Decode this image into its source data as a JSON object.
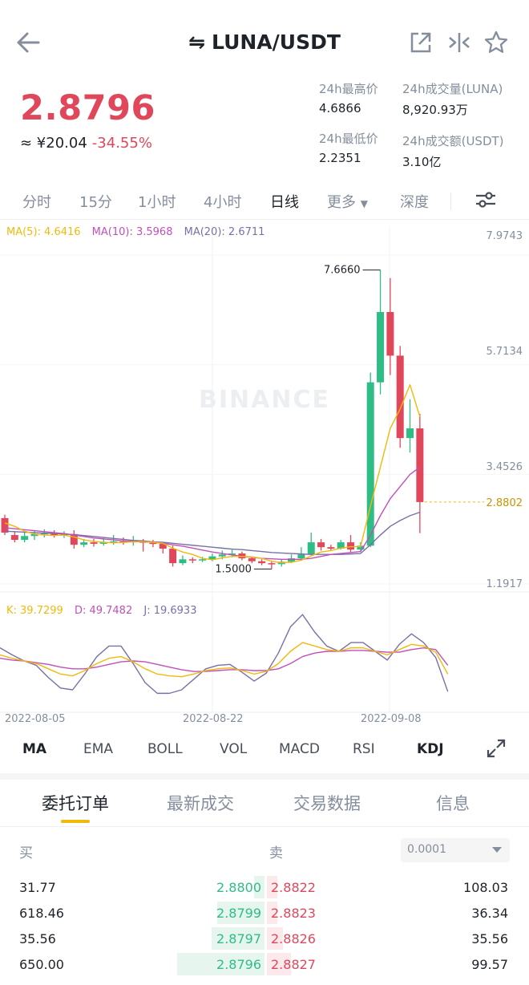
{
  "header": {
    "pair": "LUNA/USDT",
    "swap_glyph": "⇋"
  },
  "ticker": {
    "last_price": "2.8796",
    "cny_approx": "≈ ¥20.04",
    "change_pct": "-34.55%"
  },
  "stats": {
    "high_label": "24h最高价",
    "high_value": "4.6866",
    "low_label": "24h最低价",
    "low_value": "2.2351",
    "vol_label": "24h成交量(LUNA)",
    "vol_value": "8,920.93万",
    "amount_label": "24h成交额(USDT)",
    "amount_value": "3.10亿"
  },
  "intervals": [
    "分时",
    "15分",
    "1小时",
    "4小时",
    "日线",
    "更多",
    "深度"
  ],
  "active_interval": "日线",
  "ma_legend": {
    "ma5": "MA(5): 4.6416",
    "ma10": "MA(10): 3.5968",
    "ma20": "MA(20): 2.6711"
  },
  "kdj_legend": {
    "k": "K: 39.7299",
    "d": "D: 49.7482",
    "j": "J: 19.6933"
  },
  "watermark": "BINANCE",
  "colors": {
    "up": "#2ebd85",
    "down": "#e0475a",
    "ma5": "#f0b90b",
    "ma10": "#c050b8",
    "ma20": "#7a6fa8",
    "j_line": "#7a6fa8",
    "accent": "#f0b90b"
  },
  "chart_data": {
    "type": "candlestick",
    "y_axis_labels": [
      "7.9743",
      "5.7134",
      "3.4526",
      "1.1917"
    ],
    "last_price_tag": "2.8802",
    "max_label": "7.6660",
    "min_label": "1.5000",
    "x_axis_labels": [
      "2022-08-05",
      "2022-08-22",
      "2022-09-08"
    ],
    "ylim": [
      1.1917,
      7.9743
    ],
    "candles": [
      {
        "o": 2.55,
        "c": 2.25,
        "h": 2.62,
        "l": 2.2
      },
      {
        "o": 2.2,
        "c": 2.1,
        "h": 2.28,
        "l": 2.05
      },
      {
        "o": 2.1,
        "c": 2.18,
        "h": 2.25,
        "l": 2.05
      },
      {
        "o": 2.18,
        "c": 2.22,
        "h": 2.3,
        "l": 2.1
      },
      {
        "o": 2.22,
        "c": 2.24,
        "h": 2.32,
        "l": 2.15
      },
      {
        "o": 2.24,
        "c": 2.2,
        "h": 2.3,
        "l": 2.15
      },
      {
        "o": 2.2,
        "c": 2.22,
        "h": 2.28,
        "l": 2.14
      },
      {
        "o": 2.22,
        "c": 2.0,
        "h": 2.3,
        "l": 1.92
      },
      {
        "o": 2.0,
        "c": 2.05,
        "h": 2.12,
        "l": 1.95
      },
      {
        "o": 2.05,
        "c": 2.02,
        "h": 2.12,
        "l": 1.96
      },
      {
        "o": 2.02,
        "c": 2.05,
        "h": 2.15,
        "l": 1.98
      },
      {
        "o": 2.05,
        "c": 2.07,
        "h": 2.2,
        "l": 2.0
      },
      {
        "o": 2.07,
        "c": 2.05,
        "h": 2.15,
        "l": 2.0
      },
      {
        "o": 2.05,
        "c": 2.08,
        "h": 2.18,
        "l": 1.98
      },
      {
        "o": 2.08,
        "c": 2.04,
        "h": 2.12,
        "l": 1.86
      },
      {
        "o": 2.04,
        "c": 2.02,
        "h": 2.1,
        "l": 1.95
      },
      {
        "o": 2.02,
        "c": 1.92,
        "h": 2.06,
        "l": 1.82
      },
      {
        "o": 1.92,
        "c": 1.62,
        "h": 1.98,
        "l": 1.55
      },
      {
        "o": 1.62,
        "c": 1.7,
        "h": 1.78,
        "l": 1.58
      },
      {
        "o": 1.7,
        "c": 1.68,
        "h": 1.74,
        "l": 1.62
      },
      {
        "o": 1.68,
        "c": 1.7,
        "h": 1.75,
        "l": 1.64
      },
      {
        "o": 1.7,
        "c": 1.76,
        "h": 1.82,
        "l": 1.66
      },
      {
        "o": 1.76,
        "c": 1.8,
        "h": 1.88,
        "l": 1.7
      },
      {
        "o": 1.8,
        "c": 1.82,
        "h": 1.9,
        "l": 1.74
      },
      {
        "o": 1.82,
        "c": 1.72,
        "h": 1.86,
        "l": 1.68
      },
      {
        "o": 1.72,
        "c": 1.66,
        "h": 1.75,
        "l": 1.62
      },
      {
        "o": 1.66,
        "c": 1.62,
        "h": 1.7,
        "l": 1.58
      },
      {
        "o": 1.62,
        "c": 1.6,
        "h": 1.66,
        "l": 1.5
      },
      {
        "o": 1.6,
        "c": 1.65,
        "h": 1.7,
        "l": 1.55
      },
      {
        "o": 1.65,
        "c": 1.72,
        "h": 1.8,
        "l": 1.62
      },
      {
        "o": 1.72,
        "c": 1.8,
        "h": 1.95,
        "l": 1.7
      },
      {
        "o": 1.8,
        "c": 2.05,
        "h": 2.25,
        "l": 1.78
      },
      {
        "o": 2.05,
        "c": 1.95,
        "h": 2.12,
        "l": 1.88
      },
      {
        "o": 1.95,
        "c": 1.92,
        "h": 2.0,
        "l": 1.88
      },
      {
        "o": 1.92,
        "c": 2.05,
        "h": 2.1,
        "l": 1.9
      },
      {
        "o": 2.05,
        "c": 1.9,
        "h": 2.2,
        "l": 1.85
      },
      {
        "o": 1.9,
        "c": 1.98,
        "h": 2.05,
        "l": 1.85
      },
      {
        "o": 1.98,
        "c": 5.35,
        "h": 5.55,
        "l": 1.95
      },
      {
        "o": 5.35,
        "c": 6.8,
        "h": 7.666,
        "l": 5.1
      },
      {
        "o": 6.8,
        "c": 5.9,
        "h": 7.5,
        "l": 5.5
      },
      {
        "o": 5.9,
        "c": 4.2,
        "h": 6.1,
        "l": 4.0
      },
      {
        "o": 4.2,
        "c": 4.4,
        "h": 5.0,
        "l": 3.9
      },
      {
        "o": 4.4,
        "c": 2.88,
        "h": 4.7,
        "l": 2.24
      }
    ],
    "ma5": [
      2.45,
      2.38,
      2.28,
      2.22,
      2.2,
      2.19,
      2.2,
      2.16,
      2.1,
      2.07,
      2.05,
      2.04,
      2.05,
      2.06,
      2.06,
      2.05,
      2.03,
      1.93,
      1.85,
      1.8,
      1.72,
      1.69,
      1.73,
      1.76,
      1.76,
      1.75,
      1.72,
      1.66,
      1.63,
      1.64,
      1.68,
      1.77,
      1.85,
      1.88,
      1.93,
      1.96,
      1.96,
      2.8,
      3.6,
      4.4,
      4.8,
      5.3,
      4.64
    ],
    "ma10": [
      2.35,
      2.33,
      2.31,
      2.29,
      2.27,
      2.25,
      2.23,
      2.2,
      2.17,
      2.14,
      2.12,
      2.1,
      2.08,
      2.07,
      2.06,
      2.05,
      2.03,
      2.0,
      1.97,
      1.93,
      1.89,
      1.85,
      1.82,
      1.79,
      1.76,
      1.74,
      1.72,
      1.71,
      1.7,
      1.7,
      1.7,
      1.72,
      1.76,
      1.8,
      1.82,
      1.84,
      1.86,
      2.2,
      2.6,
      2.95,
      3.2,
      3.45,
      3.6
    ],
    "ma20": [
      2.28,
      2.27,
      2.26,
      2.25,
      2.24,
      2.23,
      2.22,
      2.21,
      2.19,
      2.17,
      2.15,
      2.13,
      2.11,
      2.09,
      2.08,
      2.06,
      2.05,
      2.03,
      2.01,
      1.99,
      1.97,
      1.95,
      1.93,
      1.91,
      1.9,
      1.88,
      1.86,
      1.84,
      1.83,
      1.82,
      1.81,
      1.8,
      1.8,
      1.8,
      1.8,
      1.81,
      1.82,
      2.0,
      2.2,
      2.38,
      2.5,
      2.6,
      2.67
    ],
    "kdj": {
      "k": [
        62,
        58,
        55,
        52,
        46,
        40,
        38,
        44,
        52,
        58,
        60,
        54,
        46,
        40,
        38,
        37,
        40,
        44,
        46,
        47,
        44,
        40,
        43,
        52,
        66,
        76,
        72,
        68,
        66,
        70,
        70,
        66,
        62,
        68,
        74,
        72,
        65,
        40
      ],
      "d": [
        58,
        56,
        55,
        53,
        51,
        48,
        46,
        46,
        48,
        51,
        54,
        55,
        54,
        51,
        48,
        45,
        43,
        43,
        44,
        45,
        45,
        44,
        44,
        46,
        52,
        60,
        64,
        66,
        66,
        67,
        67,
        66,
        65,
        65,
        68,
        70,
        68,
        50
      ],
      "j": [
        70,
        62,
        55,
        50,
        36,
        24,
        22,
        40,
        60,
        72,
        72,
        52,
        30,
        18,
        18,
        22,
        34,
        46,
        50,
        51,
        42,
        32,
        41,
        64,
        94,
        108,
        88,
        72,
        66,
        76,
        76,
        66,
        56,
        74,
        86,
        76,
        59,
        20
      ]
    }
  },
  "indicators": [
    "MA",
    "EMA",
    "BOLL",
    "VOL",
    "MACD",
    "RSI",
    "KDJ"
  ],
  "active_main_indicator": "MA",
  "active_sub_indicator": "KDJ",
  "orderbook_tabs": [
    "委托订单",
    "最新成交",
    "交易数据",
    "信息"
  ],
  "orderbook": {
    "bid_header": "买",
    "ask_header": "卖",
    "precision": "0.0001",
    "rows": [
      {
        "bid_qty": "31.77",
        "bid_price": "2.8800",
        "ask_price": "2.8822",
        "ask_qty": "108.03",
        "bid_depth": 0.04,
        "ask_depth": 0.04
      },
      {
        "bid_qty": "618.46",
        "bid_price": "2.8799",
        "ask_price": "2.8823",
        "ask_qty": "36.34",
        "bid_depth": 0.18,
        "ask_depth": 0.04
      },
      {
        "bid_qty": "35.56",
        "bid_price": "2.8797",
        "ask_price": "2.8826",
        "ask_qty": "35.56",
        "bid_depth": 0.2,
        "ask_depth": 0.06
      },
      {
        "bid_qty": "650.00",
        "bid_price": "2.8796",
        "ask_price": "2.8827",
        "ask_qty": "99.57",
        "bid_depth": 0.33,
        "ask_depth": 0.09
      }
    ]
  }
}
